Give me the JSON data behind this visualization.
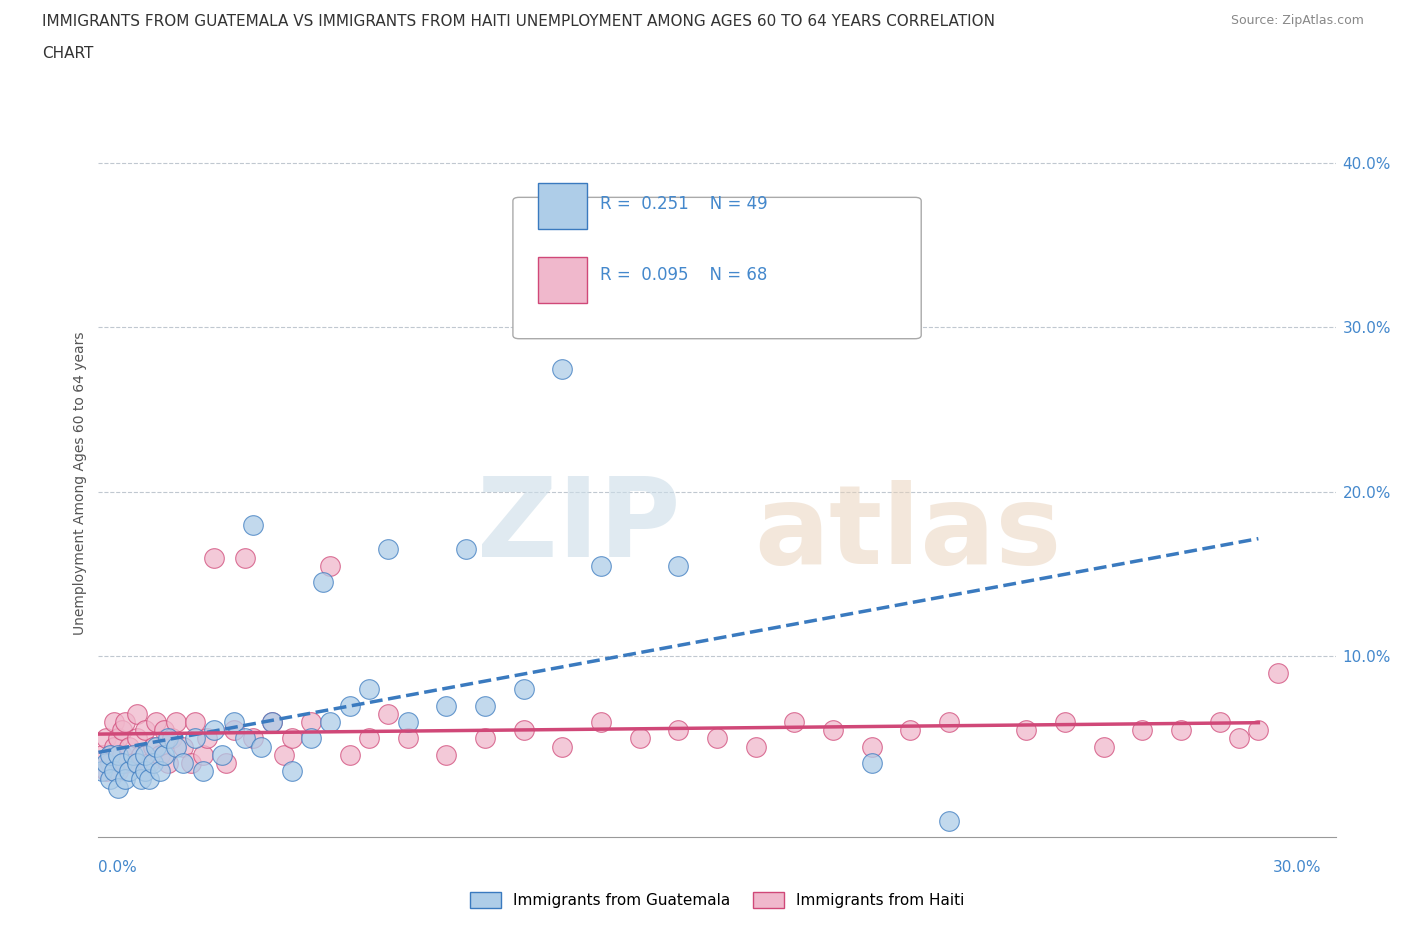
{
  "title_line1": "IMMIGRANTS FROM GUATEMALA VS IMMIGRANTS FROM HAITI UNEMPLOYMENT AMONG AGES 60 TO 64 YEARS CORRELATION",
  "title_line2": "CHART",
  "source": "Source: ZipAtlas.com",
  "ylabel_label": "Unemployment Among Ages 60 to 64 years",
  "legend_label1": "Immigrants from Guatemala",
  "legend_label2": "Immigrants from Haiti",
  "R_guatemala": 0.251,
  "N_guatemala": 49,
  "R_haiti": 0.095,
  "N_haiti": 68,
  "color_guatemala": "#aecde8",
  "color_haiti": "#f0b8cc",
  "line_color_guatemala": "#3a7abf",
  "line_color_haiti": "#d04878",
  "xlim": [
    0.0,
    0.32
  ],
  "ylim": [
    -0.01,
    0.42
  ],
  "guatemala_x": [
    0.001,
    0.002,
    0.003,
    0.003,
    0.004,
    0.005,
    0.005,
    0.006,
    0.007,
    0.008,
    0.009,
    0.01,
    0.011,
    0.012,
    0.012,
    0.013,
    0.014,
    0.015,
    0.016,
    0.017,
    0.018,
    0.02,
    0.022,
    0.025,
    0.027,
    0.03,
    0.032,
    0.035,
    0.038,
    0.04,
    0.042,
    0.045,
    0.05,
    0.055,
    0.058,
    0.06,
    0.065,
    0.07,
    0.075,
    0.08,
    0.09,
    0.095,
    0.1,
    0.11,
    0.12,
    0.13,
    0.15,
    0.2,
    0.22
  ],
  "guatemala_y": [
    0.03,
    0.035,
    0.025,
    0.04,
    0.03,
    0.04,
    0.02,
    0.035,
    0.025,
    0.03,
    0.04,
    0.035,
    0.025,
    0.03,
    0.04,
    0.025,
    0.035,
    0.045,
    0.03,
    0.04,
    0.05,
    0.045,
    0.035,
    0.05,
    0.03,
    0.055,
    0.04,
    0.06,
    0.05,
    0.18,
    0.045,
    0.06,
    0.03,
    0.05,
    0.145,
    0.06,
    0.07,
    0.08,
    0.165,
    0.06,
    0.07,
    0.165,
    0.07,
    0.08,
    0.275,
    0.155,
    0.155,
    0.035,
    0.0
  ],
  "haiti_x": [
    0.001,
    0.002,
    0.002,
    0.003,
    0.004,
    0.004,
    0.005,
    0.005,
    0.006,
    0.006,
    0.007,
    0.007,
    0.008,
    0.009,
    0.01,
    0.01,
    0.011,
    0.012,
    0.013,
    0.014,
    0.015,
    0.016,
    0.017,
    0.018,
    0.019,
    0.02,
    0.022,
    0.024,
    0.025,
    0.027,
    0.028,
    0.03,
    0.033,
    0.035,
    0.038,
    0.04,
    0.045,
    0.048,
    0.05,
    0.055,
    0.06,
    0.065,
    0.07,
    0.075,
    0.08,
    0.09,
    0.1,
    0.11,
    0.12,
    0.13,
    0.14,
    0.15,
    0.16,
    0.17,
    0.18,
    0.19,
    0.2,
    0.21,
    0.22,
    0.24,
    0.25,
    0.26,
    0.27,
    0.28,
    0.29,
    0.295,
    0.3,
    0.305
  ],
  "haiti_y": [
    0.04,
    0.03,
    0.05,
    0.035,
    0.045,
    0.06,
    0.03,
    0.05,
    0.04,
    0.055,
    0.035,
    0.06,
    0.045,
    0.035,
    0.05,
    0.065,
    0.04,
    0.055,
    0.035,
    0.045,
    0.06,
    0.04,
    0.055,
    0.035,
    0.05,
    0.06,
    0.045,
    0.035,
    0.06,
    0.04,
    0.05,
    0.16,
    0.035,
    0.055,
    0.16,
    0.05,
    0.06,
    0.04,
    0.05,
    0.06,
    0.155,
    0.04,
    0.05,
    0.065,
    0.05,
    0.04,
    0.05,
    0.055,
    0.045,
    0.06,
    0.05,
    0.055,
    0.05,
    0.045,
    0.06,
    0.055,
    0.045,
    0.055,
    0.06,
    0.055,
    0.06,
    0.045,
    0.055,
    0.055,
    0.06,
    0.05,
    0.055,
    0.09
  ]
}
